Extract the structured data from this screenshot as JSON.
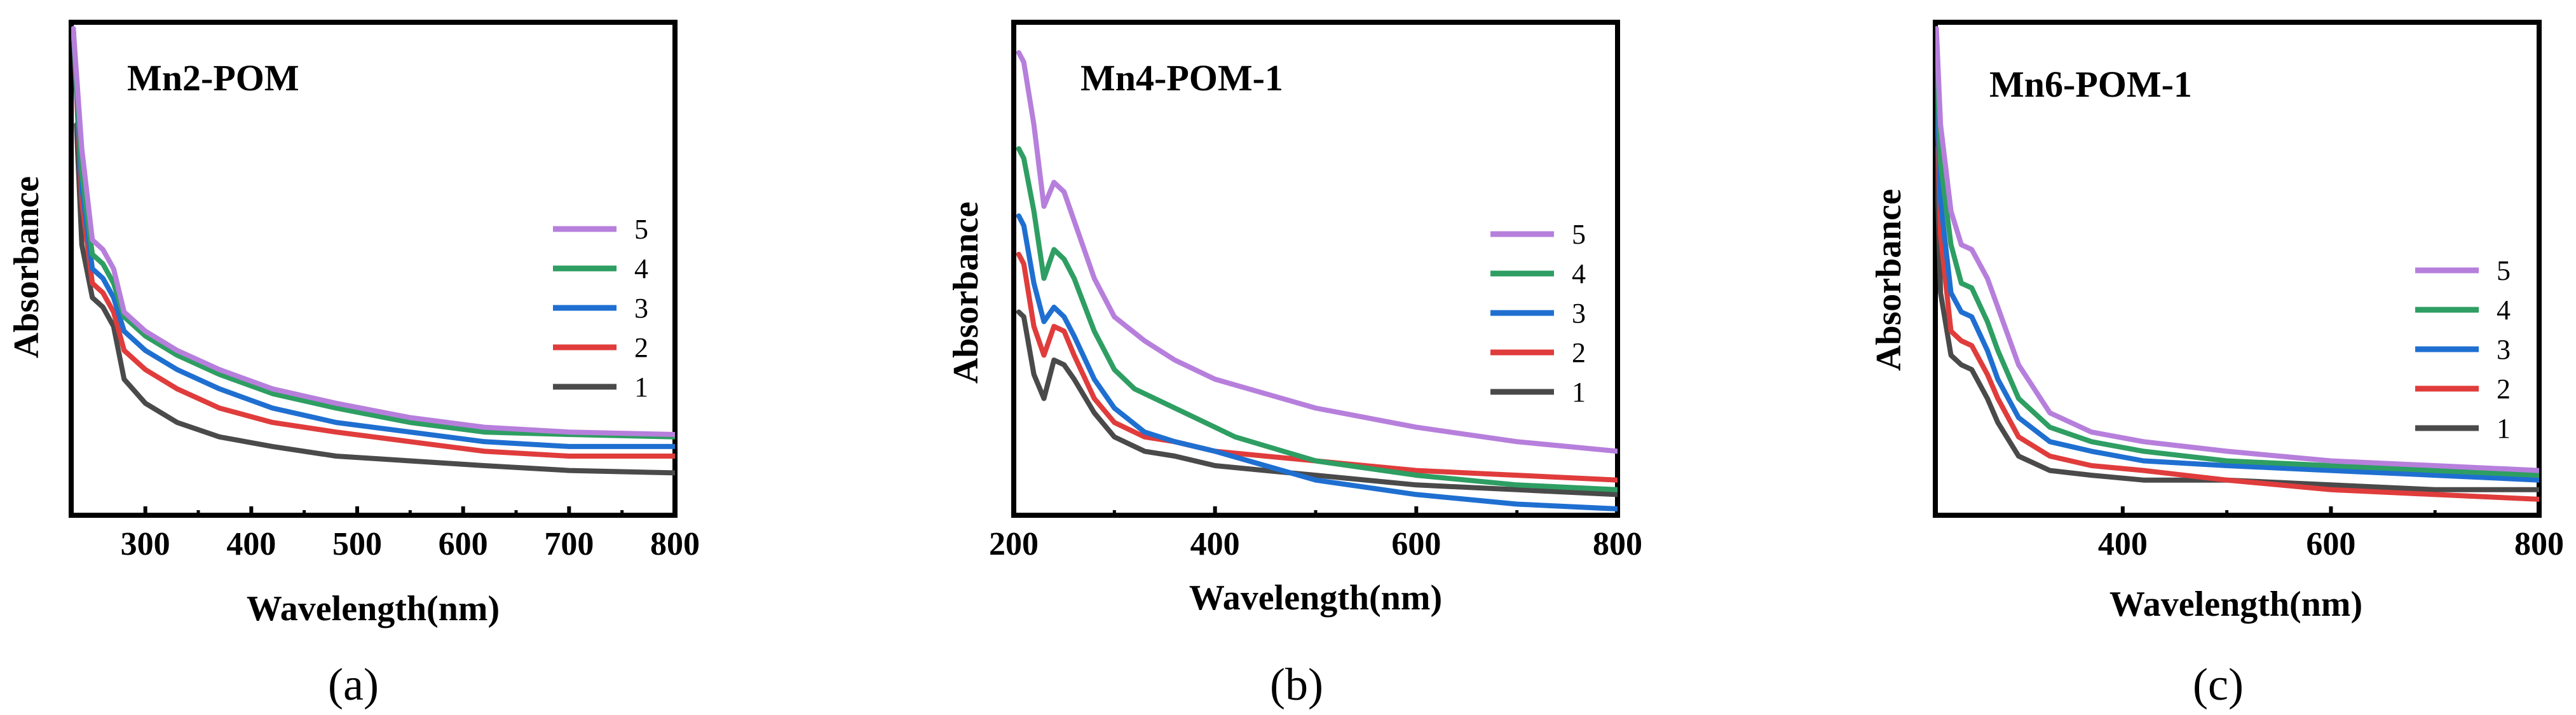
{
  "chart_data": [
    {
      "type": "line",
      "title": "Mn2-POM",
      "caption": "(a)",
      "xlabel": "Wavelength(nm)",
      "ylabel": "Absorbance",
      "xlim": [
        230,
        800
      ],
      "ylim": [
        0,
        1
      ],
      "xticks": [
        300,
        400,
        500,
        600,
        700,
        800
      ],
      "series": [
        {
          "name": "5",
          "color": "#b77fdc",
          "x": [
            232,
            240,
            250,
            260,
            270,
            280,
            300,
            330,
            370,
            420,
            480,
            550,
            620,
            700,
            800
          ],
          "y": [
            1.0,
            0.75,
            0.56,
            0.54,
            0.5,
            0.41,
            0.37,
            0.33,
            0.29,
            0.25,
            0.22,
            0.19,
            0.17,
            0.16,
            0.155
          ]
        },
        {
          "name": "4",
          "color": "#2e9e62",
          "x": [
            232,
            240,
            250,
            260,
            270,
            280,
            300,
            330,
            370,
            420,
            480,
            550,
            620,
            700,
            800
          ],
          "y": [
            1.0,
            0.7,
            0.53,
            0.51,
            0.47,
            0.4,
            0.36,
            0.32,
            0.28,
            0.24,
            0.21,
            0.18,
            0.16,
            0.155,
            0.15
          ]
        },
        {
          "name": "3",
          "color": "#1f6fd1",
          "x": [
            232,
            240,
            250,
            260,
            270,
            280,
            300,
            330,
            370,
            420,
            480,
            550,
            620,
            700,
            800
          ],
          "y": [
            1.0,
            0.67,
            0.5,
            0.48,
            0.44,
            0.37,
            0.33,
            0.29,
            0.25,
            0.21,
            0.18,
            0.16,
            0.14,
            0.13,
            0.13
          ]
        },
        {
          "name": "2",
          "color": "#e03c3c",
          "x": [
            232,
            240,
            250,
            260,
            270,
            280,
            300,
            330,
            370,
            420,
            480,
            550,
            620,
            700,
            800
          ],
          "y": [
            1.0,
            0.64,
            0.47,
            0.45,
            0.41,
            0.33,
            0.29,
            0.25,
            0.21,
            0.18,
            0.16,
            0.14,
            0.12,
            0.11,
            0.11
          ]
        },
        {
          "name": "1",
          "color": "#4a4a4a",
          "x": [
            235,
            240,
            250,
            260,
            270,
            280,
            300,
            330,
            370,
            420,
            480,
            550,
            620,
            700,
            800
          ],
          "y": [
            0.8,
            0.55,
            0.44,
            0.42,
            0.38,
            0.27,
            0.22,
            0.18,
            0.15,
            0.13,
            0.11,
            0.1,
            0.09,
            0.08,
            0.075
          ]
        }
      ]
    },
    {
      "type": "line",
      "title": "Mn4-POM-1",
      "caption": "(b)",
      "xlabel": "Wavelength(nm)",
      "ylabel": "Absorbance",
      "xlim": [
        200,
        800
      ],
      "ylim": [
        0,
        1
      ],
      "xticks": [
        200,
        400,
        600,
        800
      ],
      "series": [
        {
          "name": "5",
          "color": "#b77fdc",
          "x": [
            205,
            210,
            220,
            230,
            240,
            250,
            260,
            280,
            300,
            330,
            360,
            400,
            450,
            500,
            600,
            700,
            800
          ],
          "y": [
            0.95,
            0.93,
            0.8,
            0.63,
            0.68,
            0.66,
            0.6,
            0.48,
            0.4,
            0.35,
            0.31,
            0.27,
            0.24,
            0.21,
            0.17,
            0.14,
            0.12
          ]
        },
        {
          "name": "4",
          "color": "#2e9e62",
          "x": [
            205,
            210,
            220,
            230,
            240,
            250,
            260,
            280,
            300,
            320,
            340,
            380,
            420,
            500,
            600,
            700,
            800
          ],
          "y": [
            0.75,
            0.73,
            0.62,
            0.48,
            0.54,
            0.52,
            0.48,
            0.37,
            0.29,
            0.25,
            0.23,
            0.19,
            0.15,
            0.1,
            0.07,
            0.05,
            0.04
          ]
        },
        {
          "name": "3",
          "color": "#1f6fd1",
          "x": [
            205,
            210,
            220,
            230,
            240,
            250,
            260,
            280,
            300,
            330,
            360,
            400,
            450,
            500,
            600,
            700,
            800
          ],
          "y": [
            0.61,
            0.59,
            0.47,
            0.39,
            0.42,
            0.4,
            0.36,
            0.27,
            0.21,
            0.16,
            0.14,
            0.12,
            0.09,
            0.06,
            0.03,
            0.01,
            0.0
          ]
        },
        {
          "name": "2",
          "color": "#e03c3c",
          "x": [
            205,
            210,
            220,
            230,
            240,
            250,
            260,
            280,
            300,
            330,
            360,
            400,
            450,
            500,
            600,
            700,
            800
          ],
          "y": [
            0.53,
            0.51,
            0.38,
            0.32,
            0.38,
            0.37,
            0.32,
            0.23,
            0.18,
            0.15,
            0.14,
            0.12,
            0.11,
            0.1,
            0.08,
            0.07,
            0.06
          ]
        },
        {
          "name": "1",
          "color": "#4a4a4a",
          "x": [
            205,
            210,
            220,
            230,
            240,
            250,
            260,
            280,
            300,
            330,
            360,
            400,
            450,
            500,
            600,
            700,
            800
          ],
          "y": [
            0.41,
            0.4,
            0.28,
            0.23,
            0.31,
            0.3,
            0.27,
            0.2,
            0.15,
            0.12,
            0.11,
            0.09,
            0.08,
            0.07,
            0.05,
            0.04,
            0.03
          ]
        }
      ]
    },
    {
      "type": "line",
      "title": "Mn6-POM-1",
      "caption": "(c)",
      "xlabel": "Wavelength(nm)",
      "ylabel": "Absorbance",
      "xlim": [
        220,
        800
      ],
      "ylim": [
        0,
        1
      ],
      "xticks": [
        400,
        600,
        800
      ],
      "series": [
        {
          "name": "5",
          "color": "#b77fdc",
          "x": [
            221,
            225,
            235,
            245,
            255,
            270,
            280,
            300,
            330,
            370,
            420,
            500,
            600,
            700,
            800
          ],
          "y": [
            1.0,
            0.8,
            0.62,
            0.55,
            0.54,
            0.48,
            0.42,
            0.3,
            0.2,
            0.16,
            0.14,
            0.12,
            0.1,
            0.09,
            0.08
          ]
        },
        {
          "name": "4",
          "color": "#2e9e62",
          "x": [
            221,
            225,
            235,
            245,
            255,
            270,
            280,
            300,
            330,
            370,
            420,
            500,
            600,
            700,
            800
          ],
          "y": [
            0.97,
            0.72,
            0.55,
            0.47,
            0.46,
            0.39,
            0.33,
            0.23,
            0.17,
            0.14,
            0.12,
            0.1,
            0.09,
            0.08,
            0.07
          ]
        },
        {
          "name": "3",
          "color": "#1f6fd1",
          "x": [
            221,
            225,
            235,
            245,
            255,
            270,
            280,
            300,
            330,
            370,
            420,
            500,
            600,
            700,
            800
          ],
          "y": [
            0.93,
            0.64,
            0.45,
            0.41,
            0.4,
            0.33,
            0.27,
            0.19,
            0.14,
            0.12,
            0.1,
            0.09,
            0.08,
            0.07,
            0.06
          ]
        },
        {
          "name": "2",
          "color": "#e03c3c",
          "x": [
            221,
            225,
            235,
            245,
            255,
            270,
            280,
            300,
            330,
            370,
            420,
            500,
            600,
            700,
            800
          ],
          "y": [
            0.9,
            0.57,
            0.37,
            0.35,
            0.34,
            0.28,
            0.23,
            0.15,
            0.11,
            0.09,
            0.08,
            0.06,
            0.04,
            0.03,
            0.02
          ]
        },
        {
          "name": "1",
          "color": "#4a4a4a",
          "x": [
            221,
            225,
            235,
            245,
            255,
            270,
            280,
            300,
            330,
            370,
            420,
            500,
            600,
            700,
            800
          ],
          "y": [
            0.75,
            0.45,
            0.32,
            0.3,
            0.29,
            0.23,
            0.18,
            0.11,
            0.08,
            0.07,
            0.06,
            0.06,
            0.05,
            0.04,
            0.04
          ]
        }
      ]
    }
  ]
}
